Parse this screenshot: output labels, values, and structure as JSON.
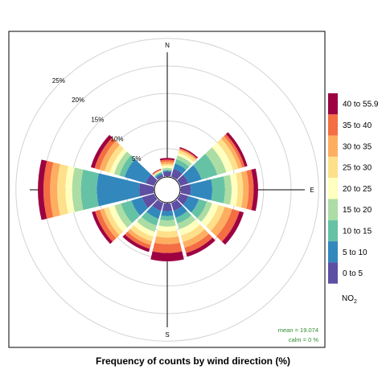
{
  "chart_data": {
    "type": "polar-stacked-bar",
    "caption": "Frequency of counts by wind direction (%)",
    "directions_deg": [
      0,
      30,
      60,
      90,
      120,
      150,
      180,
      210,
      240,
      270,
      300,
      330
    ],
    "compass_labels": [
      {
        "label": "N",
        "deg": 0
      },
      {
        "label": "E",
        "deg": 90
      },
      {
        "label": "S",
        "deg": 180
      }
    ],
    "ring_values": [
      5,
      10,
      15,
      20,
      25
    ],
    "ring_labels": [
      "5%",
      "10%",
      "15%",
      "20%",
      "25%"
    ],
    "bins": [
      "0 to 5",
      "5 to 10",
      "10 to 15",
      "15 to 20",
      "20 to 25",
      "25 to 30",
      "30 to 35",
      "35 to 40",
      "40 to 55.9"
    ],
    "colors": [
      "#5E4FA2",
      "#3288BD",
      "#66C2A5",
      "#ABDDA4",
      "#FFFFBF",
      "#FEE08B",
      "#FDAE61",
      "#F46D43",
      "#9E0142"
    ],
    "legend_title": "NO",
    "legend_title_sub": "2",
    "cumulative_percent": [
      [
        0.8,
        1.0,
        1.1,
        1.5,
        1.9,
        2.2,
        2.6,
        3.0,
        3.3
      ],
      [
        1.5,
        2.5,
        3.3,
        4.0,
        4.5,
        5.0,
        5.2,
        5.4,
        5.6
      ],
      [
        1.5,
        4.0,
        7.0,
        8.7,
        10.0,
        11.0,
        11.7,
        12.2,
        12.7
      ],
      [
        1.8,
        5.7,
        8.0,
        9.2,
        10.3,
        11.3,
        12.3,
        13.2,
        14.0
      ],
      [
        1.5,
        3.5,
        5.0,
        6.0,
        7.2,
        8.4,
        9.8,
        11.2,
        12.0
      ],
      [
        1.5,
        2.8,
        3.9,
        5.0,
        6.2,
        7.4,
        8.5,
        9.5,
        10.2
      ],
      [
        1.4,
        2.3,
        3.1,
        4.2,
        5.1,
        6.2,
        7.4,
        9.0,
        10.5
      ],
      [
        1.5,
        3.0,
        4.3,
        5.5,
        6.4,
        7.3,
        8.0,
        8.7,
        9.3
      ],
      [
        2.3,
        4.3,
        6.3,
        7.5,
        8.6,
        9.5,
        10.3,
        11.2,
        11.8
      ],
      [
        2.6,
        10.3,
        13.2,
        14.8,
        16.0,
        17.5,
        18.8,
        20.0,
        21.0
      ],
      [
        1.6,
        5.6,
        6.6,
        7.6,
        8.4,
        9.4,
        10.4,
        11.3,
        12.0
      ],
      [
        0.4,
        0.7,
        0.9,
        1.0,
        1.1,
        1.2,
        1.3,
        1.4,
        1.5
      ]
    ],
    "stats": {
      "mean": "mean = 19.074",
      "calm": "calm = 0 %"
    }
  }
}
